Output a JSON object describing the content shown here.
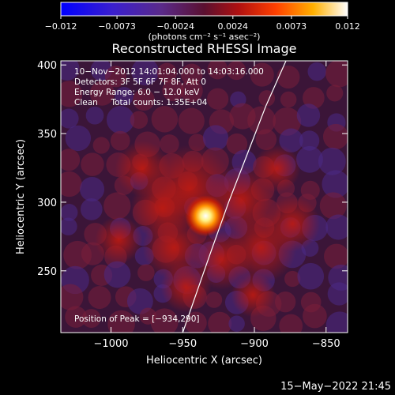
{
  "chart_data": {
    "type": "heatmap",
    "title": "Reconstructed RHESSI Image",
    "xlabel": "Heliocentric X (arcsec)",
    "ylabel": "Heliocentric Y (arcsec)",
    "xlim": [
      -1035,
      -835
    ],
    "ylim": [
      205,
      403
    ],
    "xticks": [
      -1000,
      -950,
      -900,
      -850
    ],
    "xtick_labels": [
      "−1000",
      "−950",
      "−900",
      "−850"
    ],
    "yticks": [
      250,
      300,
      350,
      400
    ],
    "ytick_labels": [
      "250",
      "300",
      "350",
      "400"
    ],
    "colorbar": {
      "range": [
        -0.012,
        0.012
      ],
      "ticks": [
        -0.012,
        -0.0073,
        -0.0024,
        0.0024,
        0.0073,
        0.012
      ],
      "tick_labels": [
        "−0.012",
        "−0.0073",
        "−0.0024",
        "0.0024",
        "0.0073",
        "0.012"
      ],
      "unit_label": "(photons cm⁻² s⁻¹ asec⁻²)"
    },
    "annotations": {
      "line1": "10−Nov−2012 14:01:04.000 to 14:03:16.000",
      "line2": "Detectors: 3F 5F 6F 7F 8F, Att 0",
      "line3": "Energy Range: 6.0 − 12.0 keV",
      "line4": "Clean     Total counts: 1.35E+04",
      "peak": "Position of Peak = [−934,290]"
    },
    "peak_position": [
      -934,
      290
    ],
    "limb_curve": [
      [
        -950,
        205
      ],
      [
        -940,
        235
      ],
      [
        -930,
        265
      ],
      [
        -918,
        300
      ],
      [
        -905,
        335
      ],
      [
        -892,
        370
      ],
      [
        -878,
        403
      ]
    ],
    "timestamp": "15−May−2022 21:45"
  }
}
